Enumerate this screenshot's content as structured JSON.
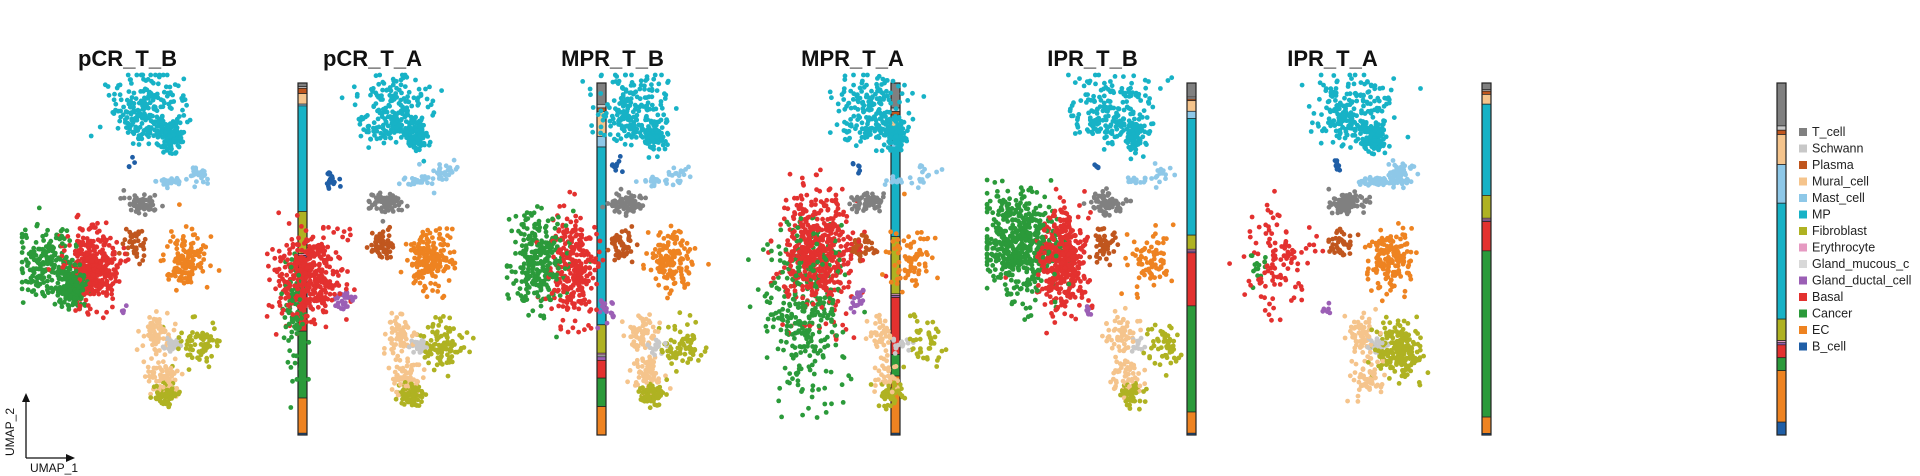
{
  "chart_data": {
    "type": "scatter",
    "projection": "UMAP",
    "axes": {
      "x_label": "UMAP_1",
      "y_label": "UMAP_2"
    },
    "panels": [
      "pCR_T_B",
      "pCR_T_A",
      "MPR_T_B",
      "MPR_T_A",
      "IPR_T_B",
      "IPR_T_A"
    ],
    "legend": [
      {
        "name": "T_cell",
        "color": "#808080"
      },
      {
        "name": "Schwann",
        "color": "#c8c8c8"
      },
      {
        "name": "Plasma",
        "color": "#c0561e"
      },
      {
        "name": "Mural_cell",
        "color": "#f5c48c"
      },
      {
        "name": "Mast_cell",
        "color": "#8ec8e8"
      },
      {
        "name": "MP",
        "color": "#17b2c6"
      },
      {
        "name": "Fibroblast",
        "color": "#afb222"
      },
      {
        "name": "Erythrocyte",
        "color": "#e69ac2"
      },
      {
        "name": "Gland_mucous_c",
        "color": "#d8d8d8"
      },
      {
        "name": "Gland_ductal_cell",
        "color": "#9b5fb5"
      },
      {
        "name": "Basal",
        "color": "#e3312f"
      },
      {
        "name": "Cancer",
        "color": "#2b9a3a"
      },
      {
        "name": "EC",
        "color": "#ee8321"
      },
      {
        "name": "B_cell",
        "color": "#1f5ea6"
      }
    ],
    "composition_bar_segment_order": [
      "T_cell",
      "Schwann",
      "Plasma",
      "Mural_cell",
      "Mast_cell",
      "MP",
      "Fibroblast",
      "Erythrocyte",
      "Gland_mucous_c",
      "Gland_ductal_cell",
      "Basal",
      "Cancer",
      "EC",
      "B_cell"
    ],
    "composition_fractions": {
      "pCR_T_B": [
        0.01,
        0.005,
        0.015,
        0.03,
        0.005,
        0.3,
        0.12,
        0.005,
        0.0,
        0.005,
        0.21,
        0.19,
        0.1,
        0.005
      ],
      "pCR_T_A": [
        0.06,
        0.01,
        0.01,
        0.07,
        0.03,
        0.5,
        0.08,
        0.005,
        0.005,
        0.01,
        0.05,
        0.08,
        0.08,
        0.0
      ],
      "MPR_T_B": [
        0.07,
        0.01,
        0.01,
        0.07,
        0.02,
        0.25,
        0.16,
        0.005,
        0.0,
        0.005,
        0.16,
        0.06,
        0.16,
        0.005
      ],
      "MPR_T_A": [
        0.04,
        0.005,
        0.005,
        0.03,
        0.02,
        0.33,
        0.04,
        0.005,
        0.0,
        0.005,
        0.15,
        0.3,
        0.06,
        0.005
      ],
      "IPR_T_B": [
        0.02,
        0.005,
        0.01,
        0.03,
        0.0,
        0.28,
        0.07,
        0.005,
        0.0,
        0.005,
        0.09,
        0.51,
        0.05,
        0.005
      ],
      "IPR_T_A": [
        0.1,
        0.01,
        0.01,
        0.07,
        0.09,
        0.27,
        0.05,
        0.005,
        0.0,
        0.005,
        0.03,
        0.03,
        0.12,
        0.03
      ]
    },
    "cluster_density": {
      "pCR_T_B": {
        "MP": 340,
        "Mast_cell": 60,
        "T_cell": 60,
        "Plasma": 40,
        "EC": 140,
        "Cancer": 400,
        "Basal": 380,
        "Mural_cell": 160,
        "Fibroblast": 140,
        "Schwann": 30,
        "Gland_ductal_cell": 4,
        "B_cell": 4
      },
      "pCR_T_A": {
        "MP": 300,
        "Mast_cell": 60,
        "T_cell": 80,
        "Plasma": 60,
        "EC": 200,
        "Cancer": 80,
        "Basal": 380,
        "Mural_cell": 140,
        "Fibroblast": 200,
        "Schwann": 30,
        "Gland_ductal_cell": 30,
        "B_cell": 20
      },
      "MPR_T_B": {
        "MP": 300,
        "Mast_cell": 40,
        "T_cell": 90,
        "Plasma": 50,
        "EC": 150,
        "Cancer": 280,
        "Basal": 280,
        "Mural_cell": 130,
        "Fibroblast": 150,
        "Schwann": 20,
        "Gland_ductal_cell": 20,
        "B_cell": 10
      },
      "MPR_T_A": {
        "MP": 300,
        "Mast_cell": 30,
        "T_cell": 70,
        "Plasma": 40,
        "EC": 80,
        "Cancer": 320,
        "Basal": 520,
        "Mural_cell": 70,
        "Fibroblast": 90,
        "Schwann": 15,
        "Gland_ductal_cell": 20,
        "B_cell": 6
      },
      "IPR_T_B": {
        "MP": 300,
        "Mast_cell": 30,
        "T_cell": 80,
        "Plasma": 50,
        "EC": 80,
        "Cancer": 520,
        "Basal": 420,
        "Mural_cell": 110,
        "Fibroblast": 110,
        "Schwann": 15,
        "Gland_ductal_cell": 6,
        "B_cell": 6
      },
      "IPR_T_A": {
        "MP": 320,
        "Mast_cell": 120,
        "T_cell": 120,
        "Plasma": 40,
        "EC": 170,
        "Cancer": 15,
        "Basal": 110,
        "Mural_cell": 120,
        "Fibroblast": 220,
        "Schwann": 30,
        "Gland_ductal_cell": 6,
        "B_cell": 10
      }
    }
  }
}
